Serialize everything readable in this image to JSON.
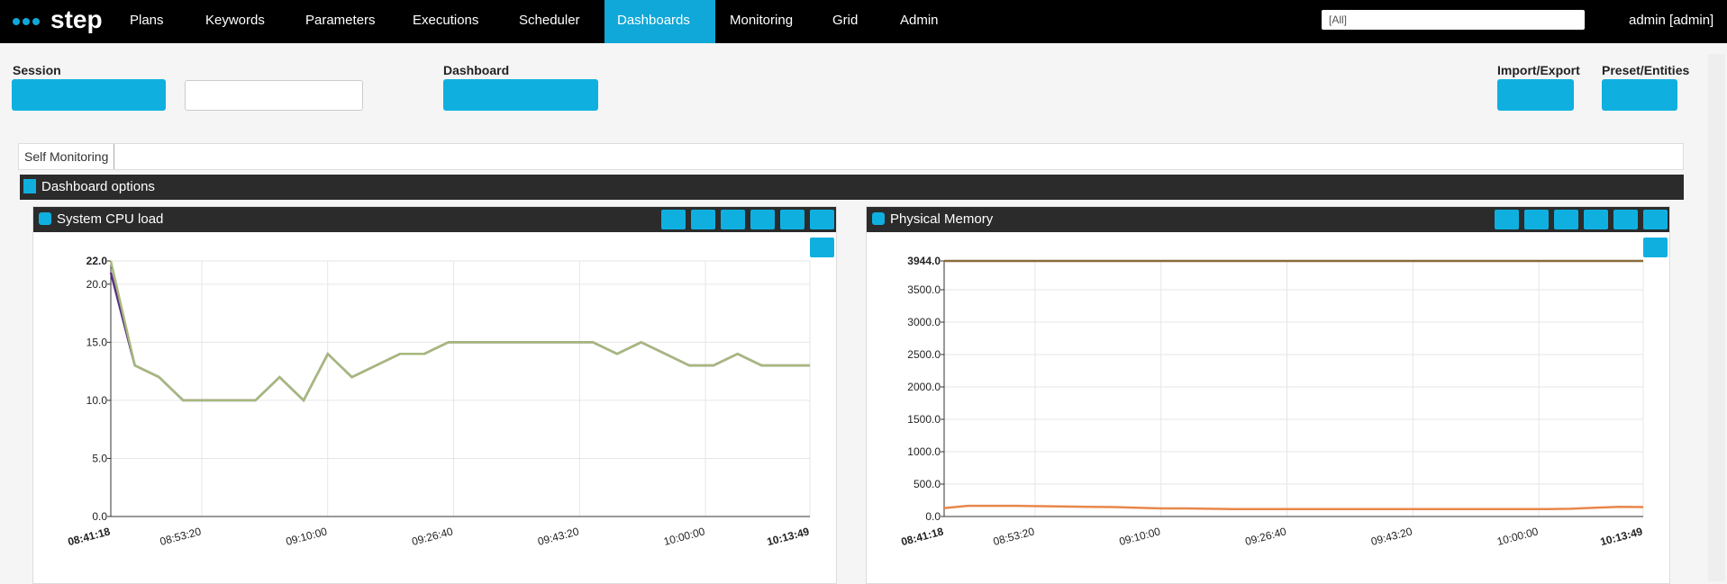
{
  "nav": {
    "brand": "step",
    "items": [
      "Plans",
      "Keywords",
      "Parameters",
      "Executions",
      "Scheduler",
      "Dashboards",
      "Monitoring",
      "Grid",
      "Admin"
    ],
    "filter": "[All]",
    "user": "admin [admin]"
  },
  "toolbar": {
    "session": "Session",
    "dashboard": "Dashboard",
    "import_export": "Import/Export",
    "preset_entities": "Preset/Entities"
  },
  "tab": "Self Monitoring",
  "options": "Dashboard options",
  "chart_data": [
    {
      "type": "line",
      "title": "System CPU load",
      "x": [
        "08:41:18",
        "08:44:29",
        "08:47:41",
        "08:50:52",
        "08:54:04",
        "08:57:15",
        "09:00:27",
        "09:03:38",
        "09:06:49",
        "09:10:01",
        "09:13:12",
        "09:16:24",
        "09:19:35",
        "09:22:47",
        "09:25:58",
        "09:29:09",
        "09:32:21",
        "09:35:32",
        "09:38:44",
        "09:41:55",
        "09:45:06",
        "09:48:18",
        "09:51:29",
        "09:54:41",
        "09:57:52",
        "10:01:03",
        "10:04:15",
        "10:07:26",
        "10:10:38",
        "10:13:49"
      ],
      "xlim": [
        "08:41:18",
        "10:13:49"
      ],
      "xticks": [
        "08:41:18",
        "08:53:20",
        "09:10:00",
        "09:26:40",
        "09:43:20",
        "10:00:00",
        "10:13:49"
      ],
      "ylim": [
        0,
        22
      ],
      "yticks": [
        {
          "value": 0,
          "label": "0.0"
        },
        {
          "value": 5,
          "label": "5.0"
        },
        {
          "value": 10,
          "label": "10.0"
        },
        {
          "value": 15,
          "label": "15.0"
        },
        {
          "value": 20,
          "label": "20.0"
        },
        {
          "value": 22,
          "label": "22.0"
        }
      ],
      "grid": true,
      "series": [
        {
          "color": "#5b2d82",
          "values": [
            21,
            13,
            12,
            10,
            10,
            10,
            10,
            12,
            10,
            14,
            12,
            13,
            14,
            14,
            15,
            15,
            15,
            15,
            15,
            15,
            15,
            14,
            15,
            14,
            13,
            13,
            14,
            13,
            13,
            13
          ]
        },
        {
          "color": "#a6b97c",
          "values": [
            22,
            13,
            12,
            10,
            10,
            10,
            10,
            12,
            10,
            14,
            12,
            13,
            14,
            14,
            15,
            15,
            15,
            15,
            15,
            15,
            15,
            14,
            15,
            14,
            13,
            13,
            14,
            13,
            13,
            13
          ]
        }
      ]
    },
    {
      "type": "line",
      "title": "Physical Memory",
      "x": [
        "08:41:18",
        "08:44:29",
        "08:47:41",
        "08:50:52",
        "08:54:04",
        "08:57:15",
        "09:00:27",
        "09:03:38",
        "09:06:49",
        "09:10:01",
        "09:13:12",
        "09:16:24",
        "09:19:35",
        "09:22:47",
        "09:25:58",
        "09:29:09",
        "09:32:21",
        "09:35:32",
        "09:38:44",
        "09:41:55",
        "09:45:06",
        "09:48:18",
        "09:51:29",
        "09:54:41",
        "09:57:52",
        "10:01:03",
        "10:04:15",
        "10:07:26",
        "10:10:38",
        "10:13:49"
      ],
      "xlim": [
        "08:41:18",
        "10:13:49"
      ],
      "xticks": [
        "08:41:18",
        "08:53:20",
        "09:10:00",
        "09:26:40",
        "09:43:20",
        "10:00:00",
        "10:13:49"
      ],
      "ylim": [
        0,
        3944
      ],
      "yticks": [
        {
          "value": 0,
          "label": "0.0"
        },
        {
          "value": 500,
          "label": "500.0"
        },
        {
          "value": 1000,
          "label": "1000.0"
        },
        {
          "value": 1500,
          "label": "1500.0"
        },
        {
          "value": 2000,
          "label": "2000.0"
        },
        {
          "value": 2500,
          "label": "2500.0"
        },
        {
          "value": 3000,
          "label": "3000.0"
        },
        {
          "value": 3500,
          "label": "3500.0"
        },
        {
          "value": 3944,
          "label": "3944.0"
        }
      ],
      "grid": true,
      "series": [
        {
          "color": "#8a6a3a",
          "values": [
            3944,
            3944,
            3944,
            3944,
            3944,
            3944,
            3944,
            3944,
            3944,
            3944,
            3944,
            3944,
            3944,
            3944,
            3944,
            3944,
            3944,
            3944,
            3944,
            3944,
            3944,
            3944,
            3944,
            3944,
            3944,
            3944,
            3944,
            3944,
            3944,
            3944
          ]
        },
        {
          "color": "#e8874a",
          "values": [
            130,
            165,
            165,
            165,
            160,
            155,
            150,
            145,
            135,
            125,
            125,
            120,
            115,
            115,
            115,
            115,
            115,
            115,
            115,
            115,
            115,
            115,
            115,
            115,
            115,
            115,
            120,
            135,
            150,
            145
          ]
        }
      ]
    }
  ]
}
